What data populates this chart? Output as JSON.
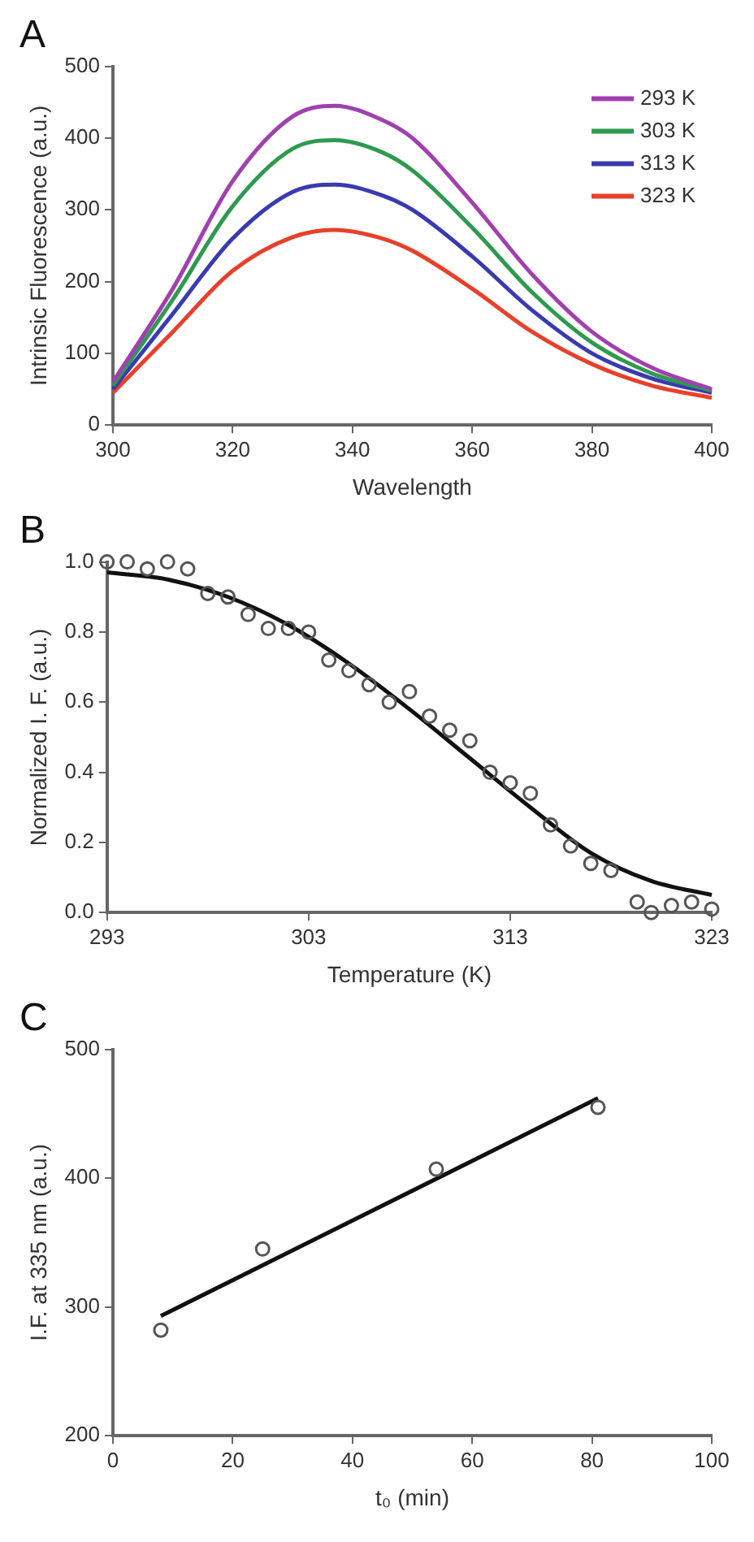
{
  "chart_data": [
    {
      "type": "line",
      "title": "A",
      "xlabel": "Wavelength",
      "ylabel": "Intrinsic Fluorescence (a.u.)",
      "x": [
        300,
        310,
        320,
        330,
        337,
        345,
        350,
        360,
        370,
        380,
        390,
        400
      ],
      "xlim": [
        300,
        400
      ],
      "xticks": [
        300,
        320,
        340,
        360,
        380,
        400
      ],
      "ylim": [
        0,
        500
      ],
      "yticks": [
        0,
        100,
        200,
        300,
        400,
        500
      ],
      "grid": false,
      "legend": "top right",
      "marker": "none",
      "line_style": "solid",
      "series": [
        {
          "name": "293 K",
          "color": "#a040b0",
          "values": [
            60,
            190,
            340,
            430,
            445,
            425,
            400,
            310,
            210,
            130,
            80,
            50
          ]
        },
        {
          "name": "303 K",
          "color": "#2e9a4e",
          "values": [
            55,
            175,
            305,
            385,
            397,
            380,
            355,
            275,
            185,
            115,
            72,
            48
          ]
        },
        {
          "name": "313 K",
          "color": "#3a3ab0",
          "values": [
            50,
            155,
            260,
            325,
            335,
            320,
            300,
            235,
            160,
            100,
            65,
            45
          ]
        },
        {
          "name": "323 K",
          "color": "#e8402a",
          "values": [
            45,
            130,
            215,
            262,
            272,
            260,
            243,
            190,
            130,
            85,
            55,
            38
          ]
        }
      ]
    },
    {
      "type": "scatter",
      "title": "B",
      "xlabel": "Temperature (K)",
      "ylabel": "Normalized I. F. (a.u.)",
      "xlim": [
        293,
        323
      ],
      "xticks": [
        293,
        303,
        313,
        323
      ],
      "ylim": [
        0,
        1
      ],
      "yticks": [
        {
          "value": 0,
          "label": "0.0"
        },
        0.2,
        0.4,
        0.6,
        0.8,
        {
          "value": 1,
          "label": "1.0"
        }
      ],
      "grid": false,
      "legend": false,
      "series": [
        {
          "type": "scatter",
          "marker": "circle",
          "color": "#555555",
          "x": [
            293,
            294,
            295,
            296,
            297,
            298,
            299,
            300,
            301,
            302,
            303,
            304,
            305,
            306,
            307,
            308,
            309,
            310,
            311,
            312,
            313,
            314,
            315,
            316,
            317,
            318,
            319.3,
            320,
            321,
            322,
            323
          ],
          "values": [
            1.0,
            1.0,
            0.98,
            1.0,
            0.98,
            0.91,
            0.9,
            0.85,
            0.81,
            0.81,
            0.8,
            0.72,
            0.69,
            0.65,
            0.6,
            0.63,
            0.56,
            0.52,
            0.49,
            0.4,
            0.37,
            0.34,
            0.25,
            0.19,
            0.14,
            0.12,
            0.03,
            0.0,
            0.02,
            0.03,
            0.01
          ]
        },
        {
          "type": "line",
          "marker": "none",
          "line_style": "solid",
          "color": "#111111",
          "x": [
            293,
            296,
            299,
            302,
            305,
            308,
            311,
            314,
            317,
            320,
            323
          ],
          "values": [
            0.97,
            0.95,
            0.9,
            0.82,
            0.71,
            0.58,
            0.44,
            0.3,
            0.17,
            0.09,
            0.05
          ]
        }
      ]
    },
    {
      "type": "scatter",
      "title": "C",
      "xlabel": "t₀ (min)",
      "ylabel": "I.F. at 335 nm (a.u.)",
      "xlim": [
        0,
        100
      ],
      "xticks": [
        0,
        20,
        40,
        60,
        80,
        100
      ],
      "ylim": [
        200,
        500
      ],
      "yticks": [
        200,
        300,
        400,
        500
      ],
      "grid": false,
      "legend": false,
      "series": [
        {
          "type": "scatter",
          "marker": "circle",
          "color": "#555555",
          "x": [
            8,
            25,
            54,
            81
          ],
          "values": [
            282,
            345,
            407,
            455
          ]
        },
        {
          "type": "line",
          "marker": "none",
          "line_style": "solid",
          "color": "#111111",
          "x": [
            8,
            81
          ],
          "values": [
            293,
            462
          ]
        }
      ]
    }
  ]
}
